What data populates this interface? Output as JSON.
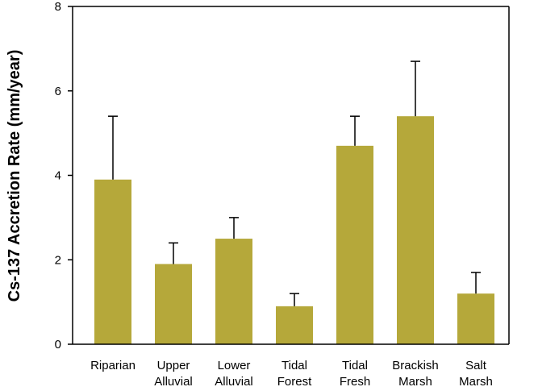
{
  "chart_data": {
    "type": "bar",
    "title": "",
    "xlabel": "",
    "ylabel": "Cs-137 Accretion Rate (mm/year)",
    "ylim": [
      0,
      8
    ],
    "yticks": [
      0,
      2,
      4,
      6,
      8
    ],
    "categories": [
      [
        "Riparian"
      ],
      [
        "Upper",
        "Alluvial"
      ],
      [
        "Lower",
        "Alluvial"
      ],
      [
        "Tidal",
        "Forest"
      ],
      [
        "Tidal",
        "Fresh"
      ],
      [
        "Brackish",
        "Marsh"
      ],
      [
        "Salt",
        "Marsh"
      ]
    ],
    "series": [
      {
        "values": [
          3.9,
          1.9,
          2.5,
          0.9,
          4.7,
          5.4,
          1.2
        ],
        "error_upper": [
          1.5,
          0.5,
          0.5,
          0.3,
          0.7,
          1.3,
          0.5
        ]
      }
    ],
    "grid": false,
    "colors": {
      "bar": "#b5a83a",
      "axis": "#000000"
    }
  }
}
